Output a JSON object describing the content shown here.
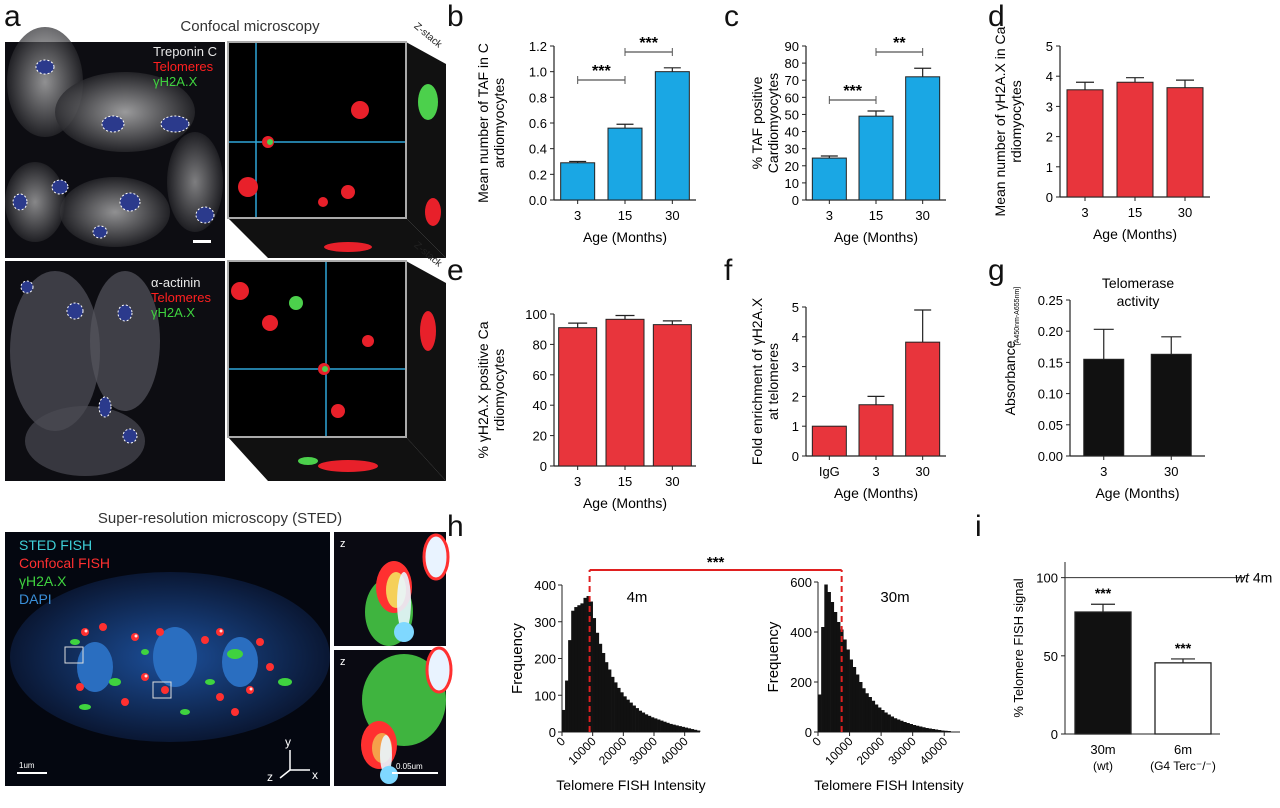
{
  "panel_labels": {
    "a": "a",
    "b": "b",
    "c": "c",
    "d": "d",
    "e": "e",
    "f": "f",
    "g": "g",
    "h": "h",
    "i": "i"
  },
  "panel_a": {
    "title": "Confocal microscopy",
    "top_legend": [
      "Treponin C",
      "Telomeres",
      "γH2A.X"
    ],
    "top_legend_colors": [
      "#e8e8e8",
      "#ff2020",
      "#3fd33f"
    ],
    "bottom_legend": [
      "α-actinin",
      "Telomeres",
      "γH2A.X"
    ],
    "bottom_legend_colors": [
      "#e8e8e8",
      "#ff2020",
      "#3fd33f"
    ],
    "zstack_top": "Z-stack",
    "zstack_bottom": "Z-stack"
  },
  "panel_sted": {
    "title": "Super-resolution microscopy (STED)",
    "legend": [
      "STED FISH",
      "Confocal FISH",
      "γH2A.X",
      "DAPI"
    ],
    "legend_colors": [
      "#3fd0d8",
      "#ff3030",
      "#3fd33f",
      "#3a8fd8"
    ],
    "scalebar": "1um",
    "inset_z_top": "z",
    "inset_z_bottom": "z",
    "inset_scalebar": "0.05um",
    "axes": {
      "y": "y",
      "z": "z",
      "x": "x"
    }
  },
  "colors": {
    "blue": "#1aa7e4",
    "red": "#e8353c",
    "black": "#111111",
    "white": "#ffffff"
  },
  "chart_data": [
    {
      "id": "b",
      "type": "bar",
      "categories": [
        "3",
        "15",
        "30"
      ],
      "values": [
        0.29,
        0.56,
        1.0
      ],
      "errors": [
        0.01,
        0.03,
        0.03
      ],
      "ylabel": "Mean number of TAF in Cardiomyocytes",
      "xlabel": "Age (Months)",
      "ylim": [
        0,
        1.2
      ],
      "yticks": [
        "0.0",
        "0.2",
        "0.4",
        "0.6",
        "0.8",
        "1.0",
        "1.2"
      ],
      "color": "#1aa7e4",
      "significance": [
        {
          "from": 0,
          "to": 1,
          "label": "***"
        },
        {
          "from": 1,
          "to": 2,
          "label": "***"
        }
      ]
    },
    {
      "id": "c",
      "type": "bar",
      "categories": [
        "3",
        "15",
        "30"
      ],
      "values": [
        24.5,
        49,
        72
      ],
      "errors": [
        1.2,
        3,
        5
      ],
      "ylabel": "% TAF positive Cardiomyocytes",
      "xlabel": "Age (Months)",
      "ylim": [
        0,
        90
      ],
      "yticks": [
        "0",
        "10",
        "20",
        "30",
        "40",
        "50",
        "60",
        "70",
        "80",
        "90"
      ],
      "color": "#1aa7e4",
      "significance": [
        {
          "from": 0,
          "to": 1,
          "label": "***"
        },
        {
          "from": 1,
          "to": 2,
          "label": "**"
        }
      ]
    },
    {
      "id": "d",
      "type": "bar",
      "categories": [
        "3",
        "15",
        "30"
      ],
      "values": [
        3.55,
        3.8,
        3.62
      ],
      "errors": [
        0.25,
        0.15,
        0.25
      ],
      "ylabel": "Mean number of γH2A.X in Cardiomyocytes",
      "xlabel": "Age (Months)",
      "ylim": [
        0,
        5
      ],
      "yticks": [
        "0",
        "1",
        "2",
        "3",
        "4",
        "5"
      ],
      "color": "#e8353c",
      "significance": []
    },
    {
      "id": "e",
      "type": "bar",
      "categories": [
        "3",
        "15",
        "30"
      ],
      "values": [
        91,
        96.5,
        93
      ],
      "errors": [
        3,
        2.5,
        2.5
      ],
      "ylabel": "% γH2A.X positive Cardiomyocytes",
      "xlabel": "Age (Months)",
      "ylim": [
        0,
        100
      ],
      "yticks": [
        "0",
        "20",
        "40",
        "60",
        "80",
        "100"
      ],
      "color": "#e8353c",
      "significance": []
    },
    {
      "id": "f",
      "type": "bar",
      "categories": [
        "IgG",
        "3",
        "30"
      ],
      "values": [
        1.0,
        1.72,
        3.82
      ],
      "errors": [
        0,
        0.28,
        1.08
      ],
      "ylabel": "Fold enrichment of γH2A.X at telomeres",
      "xlabel": "Age (Months)",
      "ylim": [
        0,
        5
      ],
      "yticks": [
        "0",
        "1",
        "2",
        "3",
        "4",
        "5"
      ],
      "color": "#e8353c",
      "significance": []
    },
    {
      "id": "g",
      "type": "bar",
      "categories": [
        "3",
        "30"
      ],
      "values": [
        0.155,
        0.163
      ],
      "errors": [
        0.048,
        0.028
      ],
      "title": "Telomerase activity",
      "ylabel": "Absorbance",
      "ylabel_sup": "[A450nm-A655nm]",
      "xlabel": "Age (Months)",
      "ylim": [
        0,
        0.25
      ],
      "yticks": [
        "0.00",
        "0.05",
        "0.10",
        "0.15",
        "0.20",
        "0.25"
      ],
      "color": "#111111",
      "significance": []
    },
    {
      "id": "h1",
      "type": "bar",
      "subtype": "histogram",
      "annotation": "4m",
      "x": [
        1000,
        2000,
        3000,
        4000,
        5000,
        6000,
        7000,
        8000,
        9000,
        10000,
        11000,
        12000,
        13000,
        14000,
        15000,
        16000,
        17000,
        18000,
        19000,
        20000,
        21000,
        22000,
        23000,
        24000,
        25000,
        26000,
        27000,
        28000,
        29000,
        30000,
        31000,
        32000,
        33000,
        34000,
        35000,
        36000,
        37000,
        38000,
        39000,
        40000,
        41000,
        42000,
        43000,
        44000,
        45000
      ],
      "values": [
        60,
        140,
        250,
        330,
        340,
        345,
        350,
        365,
        370,
        355,
        310,
        270,
        240,
        215,
        190,
        170,
        150,
        135,
        120,
        108,
        97,
        88,
        80,
        72,
        65,
        58,
        53,
        48,
        44,
        40,
        37,
        34,
        31,
        28,
        25,
        22,
        20,
        18,
        16,
        14,
        12,
        10,
        8,
        6,
        4
      ],
      "ylabel": "Frequency",
      "xlabel": "Telomere FISH Intensity",
      "ylim": [
        0,
        400
      ],
      "yticks": [
        "0",
        "100",
        "200",
        "300",
        "400"
      ],
      "xticks": [
        "0",
        "10000",
        "20000",
        "30000",
        "40000"
      ],
      "median_line": 9000,
      "color": "#111111"
    },
    {
      "id": "h2",
      "type": "bar",
      "subtype": "histogram",
      "annotation": "30m",
      "x": [
        1000,
        2000,
        3000,
        4000,
        5000,
        6000,
        7000,
        8000,
        9000,
        10000,
        11000,
        12000,
        13000,
        14000,
        15000,
        16000,
        17000,
        18000,
        19000,
        20000,
        21000,
        22000,
        23000,
        24000,
        25000,
        26000,
        27000,
        28000,
        29000,
        30000,
        31000,
        32000,
        33000,
        34000,
        35000,
        36000,
        37000,
        38000,
        39000,
        40000,
        41000,
        42000
      ],
      "values": [
        150,
        420,
        590,
        560,
        520,
        480,
        440,
        410,
        370,
        330,
        290,
        260,
        230,
        200,
        175,
        155,
        140,
        125,
        110,
        98,
        88,
        78,
        70,
        62,
        55,
        50,
        45,
        40,
        36,
        32,
        28,
        25,
        22,
        19,
        16,
        14,
        12,
        10,
        8,
        6,
        5,
        4
      ],
      "ylabel": "Frequency",
      "xlabel": "Telomere FISH Intensity",
      "ylim": [
        0,
        600
      ],
      "yticks": [
        "0",
        "200",
        "400",
        "600"
      ],
      "xticks": [
        "0",
        "10000",
        "20000",
        "30000",
        "40000"
      ],
      "median_line": 7500,
      "color": "#111111"
    },
    {
      "id": "h_significance",
      "label": "***"
    },
    {
      "id": "i",
      "type": "bar",
      "categories": [
        "30m\n(wt)",
        "6m\n(G4 Terc-/-)"
      ],
      "cat_line1": [
        "30m",
        "6m"
      ],
      "cat_line2": [
        "(wt)",
        "(G4 Terc⁻/⁻)"
      ],
      "values": [
        78,
        45.5
      ],
      "errors": [
        5,
        2.5
      ],
      "colors": [
        "#111111",
        "#ffffff"
      ],
      "ylabel": "% Telomere FISH signal",
      "ylim": [
        0,
        110
      ],
      "yticks": [
        "0",
        "50",
        "100"
      ],
      "reference_line": 100,
      "reference_label_italic": "wt",
      "reference_label": "4m",
      "significance": [
        {
          "bar": 0,
          "label": "***"
        },
        {
          "bar": 1,
          "label": "***"
        }
      ]
    }
  ]
}
